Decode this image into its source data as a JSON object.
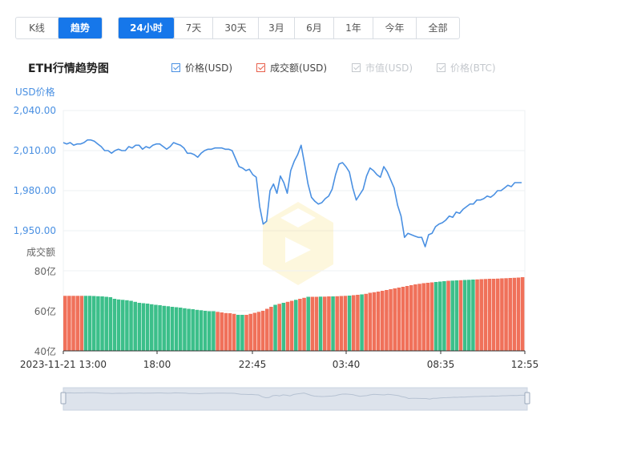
{
  "mode_tabs": [
    {
      "label": "K线",
      "active": false
    },
    {
      "label": "趋势",
      "active": true
    }
  ],
  "range_tabs": [
    {
      "label": "24小时",
      "active": true
    },
    {
      "label": "7天",
      "active": false
    },
    {
      "label": "30天",
      "active": false
    },
    {
      "label": "3月",
      "active": false
    },
    {
      "label": "6月",
      "active": false
    },
    {
      "label": "1年",
      "active": false
    },
    {
      "label": "今年",
      "active": false
    },
    {
      "label": "全部",
      "active": false
    }
  ],
  "chart_title": "ETH行情趋势图",
  "legend": [
    {
      "label": "价格(USD)",
      "color": "#4a90e2",
      "enabled": true
    },
    {
      "label": "成交额(USD)",
      "color": "#e8604c",
      "enabled": true
    },
    {
      "label": "市值(USD)",
      "color": "#c4c8cd",
      "enabled": false
    },
    {
      "label": "价格(BTC)",
      "color": "#c4c8cd",
      "enabled": false
    }
  ],
  "colors": {
    "price_line": "#4a90e2",
    "volume_up": "#f0715a",
    "volume_down": "#3cbf8a",
    "axis_text_price": "#4a90e2",
    "axis_text_volume": "#666666",
    "grid": "#eef0f3",
    "navigator_fill": "#dde3ec"
  },
  "chart_data": {
    "type": "line",
    "price_axis": {
      "title": "USD价格",
      "ticks": [
        "2,040.00",
        "2,010.00",
        "1,980.00",
        "1,950.00"
      ],
      "tick_values": [
        2040,
        2010,
        1980,
        1950
      ],
      "range": [
        1950,
        2040
      ]
    },
    "volume_axis": {
      "title": "成交额",
      "ticks": [
        "80亿",
        "60亿",
        "40亿"
      ],
      "tick_values": [
        80,
        60,
        40
      ],
      "range": [
        40,
        80
      ],
      "unit": "亿"
    },
    "x_ticks": [
      "2023-11-21 13:00",
      "18:00",
      "22:45",
      "03:40",
      "08:35",
      "12:55"
    ],
    "price_series": {
      "name": "价格(USD)",
      "values": [
        2016,
        2015,
        2016,
        2014,
        2015,
        2015,
        2016,
        2018,
        2018,
        2017,
        2015,
        2013,
        2010,
        2010,
        2008,
        2010,
        2011,
        2010,
        2010,
        2013,
        2012,
        2014,
        2014,
        2011,
        2013,
        2012,
        2014,
        2015,
        2015,
        2013,
        2011,
        2013,
        2016,
        2015,
        2014,
        2012,
        2008,
        2008,
        2007,
        2005,
        2008,
        2010,
        2011,
        2011,
        2012,
        2012,
        2012,
        2011,
        2011,
        2010,
        2004,
        1998,
        1997,
        1995,
        1996,
        1992,
        1990,
        1968,
        1955,
        1957,
        1980,
        1985,
        1978,
        1991,
        1986,
        1978,
        1995,
        2002,
        2007,
        2014,
        2000,
        1985,
        1975,
        1972,
        1970,
        1971,
        1974,
        1976,
        1981,
        1992,
        2000,
        2001,
        1998,
        1994,
        1982,
        1973,
        1977,
        1981,
        1991,
        1997,
        1995,
        1992,
        1990,
        1998,
        1994,
        1988,
        1982,
        1969,
        1961,
        1945,
        1948,
        1947,
        1946,
        1945,
        1945,
        1938,
        1947,
        1948,
        1953,
        1955,
        1956,
        1958,
        1961,
        1960,
        1964,
        1963,
        1966,
        1968,
        1970,
        1970,
        1973,
        1973,
        1974,
        1976,
        1975,
        1977,
        1980,
        1980,
        1982,
        1984,
        1983,
        1986,
        1986,
        1986
      ]
    },
    "volume_series": {
      "name": "成交额(USD)",
      "values": [
        67.5,
        67.5,
        67.5,
        67.5,
        67.5,
        67.5,
        67.5,
        67.4,
        67.3,
        67.2,
        67.0,
        66.8,
        66.0,
        65.7,
        65.5,
        65.3,
        65.0,
        64.5,
        64.0,
        63.8,
        63.6,
        63.3,
        63.0,
        62.8,
        62.5,
        62.3,
        62.0,
        61.8,
        61.6,
        61.3,
        61.0,
        60.8,
        60.5,
        60.3,
        60.0,
        59.8,
        59.8,
        59.5,
        59.2,
        58.9,
        58.8,
        58.5,
        58.0,
        58.0,
        58.0,
        58.5,
        59.0,
        59.5,
        60.0,
        61.0,
        62.0,
        63.0,
        63.5,
        64.0,
        64.5,
        65.0,
        65.5,
        66.0,
        66.5,
        67.0,
        67.0,
        67.0,
        67.1,
        67.1,
        67.2,
        67.2,
        67.3,
        67.4,
        67.5,
        67.6,
        67.8,
        68.0,
        68.2,
        68.5,
        69.0,
        69.3,
        69.6,
        70.0,
        70.4,
        70.8,
        71.2,
        71.6,
        72.0,
        72.4,
        72.8,
        73.2,
        73.5,
        73.8,
        74.0,
        74.2,
        74.4,
        74.6,
        74.8,
        75.0,
        75.1,
        75.2,
        75.3,
        75.4,
        75.5,
        75.6,
        75.7,
        75.8,
        75.9,
        76.0,
        76.0,
        76.1,
        76.2,
        76.3,
        76.4,
        76.5,
        76.6,
        76.8
      ],
      "colors": [
        "up",
        "up",
        "up",
        "up",
        "up",
        "down",
        "down",
        "down",
        "down",
        "down",
        "down",
        "down",
        "down",
        "down",
        "down",
        "down",
        "down",
        "down",
        "down",
        "down",
        "down",
        "down",
        "down",
        "down",
        "down",
        "down",
        "down",
        "down",
        "down",
        "down",
        "down",
        "down",
        "down",
        "down",
        "down",
        "down",
        "down",
        "up",
        "up",
        "up",
        "up",
        "up",
        "down",
        "down",
        "up",
        "up",
        "up",
        "up",
        "up",
        "up",
        "up",
        "down",
        "up",
        "down",
        "up",
        "up",
        "down",
        "up",
        "up",
        "down",
        "up",
        "up",
        "down",
        "up",
        "up",
        "down",
        "up",
        "up",
        "up",
        "down",
        "up",
        "up",
        "down",
        "up",
        "up",
        "up",
        "up",
        "up",
        "up",
        "up",
        "up",
        "up",
        "up",
        "up",
        "up",
        "up",
        "up",
        "up",
        "up",
        "up",
        "down",
        "down",
        "down",
        "up",
        "down",
        "down",
        "up",
        "down",
        "down",
        "down",
        "up",
        "up",
        "up",
        "up",
        "up",
        "up",
        "up",
        "up",
        "up",
        "up",
        "up",
        "up"
      ]
    }
  }
}
